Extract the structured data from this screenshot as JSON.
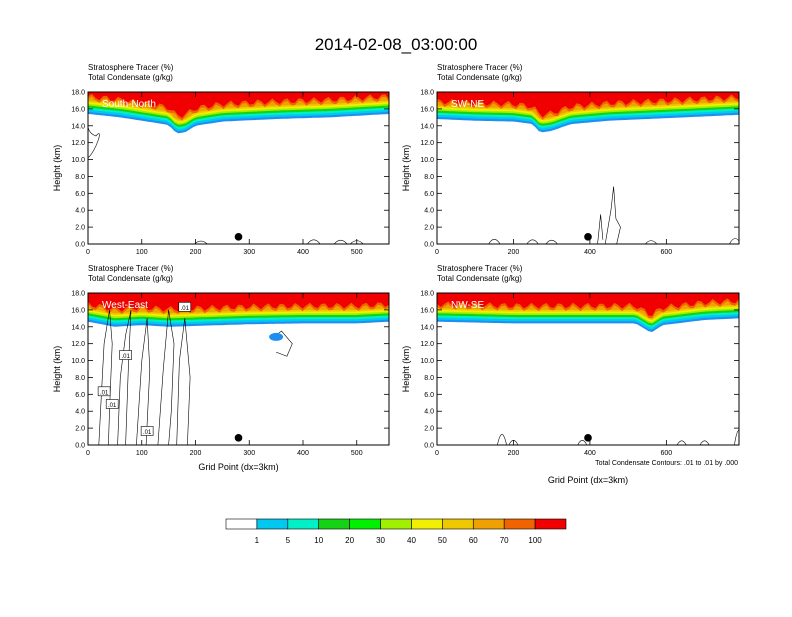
{
  "title": "2014-02-08_03:00:00",
  "colors": {
    "frame": "#000000",
    "contour": "#000000",
    "panel_label_text": "#ffffff",
    "marker": "#000000"
  },
  "footnote": "Total Condensate Contours: .01 to .01 by .000",
  "chart_data": [
    {
      "type": "heatmap",
      "panel": "South-North",
      "subtitle_line1": "Stratosphere Tracer   (%)",
      "subtitle_line2": "Total Condensate   (g/kg)",
      "ylabel": "Height (km)",
      "xlabel": "",
      "xlim": [
        0,
        560
      ],
      "ylim": [
        0,
        18
      ],
      "xticks": [
        0,
        100,
        200,
        300,
        400,
        500
      ],
      "yticks": [
        "0.0",
        "2.0",
        "4.0",
        "6.0",
        "8.0",
        "10.0",
        "12.0",
        "14.0",
        "16.0",
        "18.0"
      ],
      "tracer_base_km": [
        [
          0,
          15.4
        ],
        [
          60,
          15.0
        ],
        [
          110,
          14.5
        ],
        [
          150,
          14.1
        ],
        [
          165,
          13.1
        ],
        [
          180,
          13.2
        ],
        [
          200,
          14.0
        ],
        [
          250,
          14.5
        ],
        [
          350,
          14.8
        ],
        [
          450,
          15.0
        ],
        [
          560,
          15.4
        ]
      ],
      "contour_labels": [],
      "marker_x": 280
    },
    {
      "type": "heatmap",
      "panel": "SW-NE",
      "subtitle_line1": "Stratosphere Tracer   (%)",
      "subtitle_line2": "Total Condensate   (g/kg)",
      "ylabel": "Height (km)",
      "xlabel": "",
      "xlim": [
        0,
        790
      ],
      "ylim": [
        0,
        18
      ],
      "xticks": [
        0,
        200,
        400,
        600
      ],
      "yticks": [
        "0.0",
        "2.0",
        "4.0",
        "6.0",
        "8.0",
        "10.0",
        "12.0",
        "14.0",
        "16.0",
        "18.0"
      ],
      "tracer_base_km": [
        [
          0,
          14.8
        ],
        [
          100,
          14.6
        ],
        [
          200,
          14.5
        ],
        [
          250,
          14.2
        ],
        [
          270,
          13.2
        ],
        [
          300,
          13.4
        ],
        [
          350,
          14.2
        ],
        [
          450,
          14.6
        ],
        [
          550,
          14.8
        ],
        [
          650,
          15.0
        ],
        [
          790,
          15.3
        ]
      ],
      "contour_labels": [],
      "marker_x": 395
    },
    {
      "type": "heatmap",
      "panel": "West-East",
      "subtitle_line1": "Stratosphere Tracer   (%)",
      "subtitle_line2": "Total Condensate   (g/kg)",
      "ylabel": "Height (km)",
      "xlabel": "Grid Point (dx=3km)",
      "xlim": [
        0,
        560
      ],
      "ylim": [
        0,
        18
      ],
      "xticks": [
        0,
        100,
        200,
        300,
        400,
        500
      ],
      "yticks": [
        "0.0",
        "2.0",
        "4.0",
        "6.0",
        "8.0",
        "10.0",
        "12.0",
        "14.0",
        "16.0",
        "18.0"
      ],
      "tracer_base_km": [
        [
          0,
          14.6
        ],
        [
          50,
          14.0
        ],
        [
          100,
          14.2
        ],
        [
          150,
          14.0
        ],
        [
          200,
          14.1
        ],
        [
          300,
          14.3
        ],
        [
          400,
          14.4
        ],
        [
          500,
          14.4
        ],
        [
          560,
          14.6
        ]
      ],
      "contour_labels": [
        ".01",
        ".01",
        ".01",
        ".01",
        ".01"
      ],
      "marker_x": 280
    },
    {
      "type": "heatmap",
      "panel": "NW-SE",
      "subtitle_line1": "Stratosphere Tracer   (%)",
      "subtitle_line2": "Total Condensate   (g/kg)",
      "ylabel": "Height (km)",
      "xlabel": "Grid Point (dx=3km)",
      "xlim": [
        0,
        790
      ],
      "ylim": [
        0,
        18
      ],
      "xticks": [
        0,
        200,
        400,
        600
      ],
      "yticks": [
        "0.0",
        "2.0",
        "4.0",
        "6.0",
        "8.0",
        "10.0",
        "12.0",
        "14.0",
        "16.0",
        "18.0"
      ],
      "tracer_base_km": [
        [
          0,
          14.6
        ],
        [
          200,
          14.4
        ],
        [
          400,
          14.4
        ],
        [
          520,
          14.4
        ],
        [
          560,
          13.3
        ],
        [
          590,
          14.2
        ],
        [
          700,
          14.8
        ],
        [
          790,
          15.0
        ]
      ],
      "contour_labels": [],
      "marker_x": 395
    }
  ],
  "colorbar": {
    "labels": [
      "1",
      "5",
      "10",
      "20",
      "30",
      "40",
      "50",
      "60",
      "70",
      "100"
    ],
    "colors": [
      "#ffffff",
      "#1e8ff0",
      "#00c8f0",
      "#00f0c8",
      "#14d214",
      "#00f000",
      "#a0f000",
      "#f0f000",
      "#f0c800",
      "#f0a000",
      "#f06400",
      "#f00000"
    ]
  }
}
